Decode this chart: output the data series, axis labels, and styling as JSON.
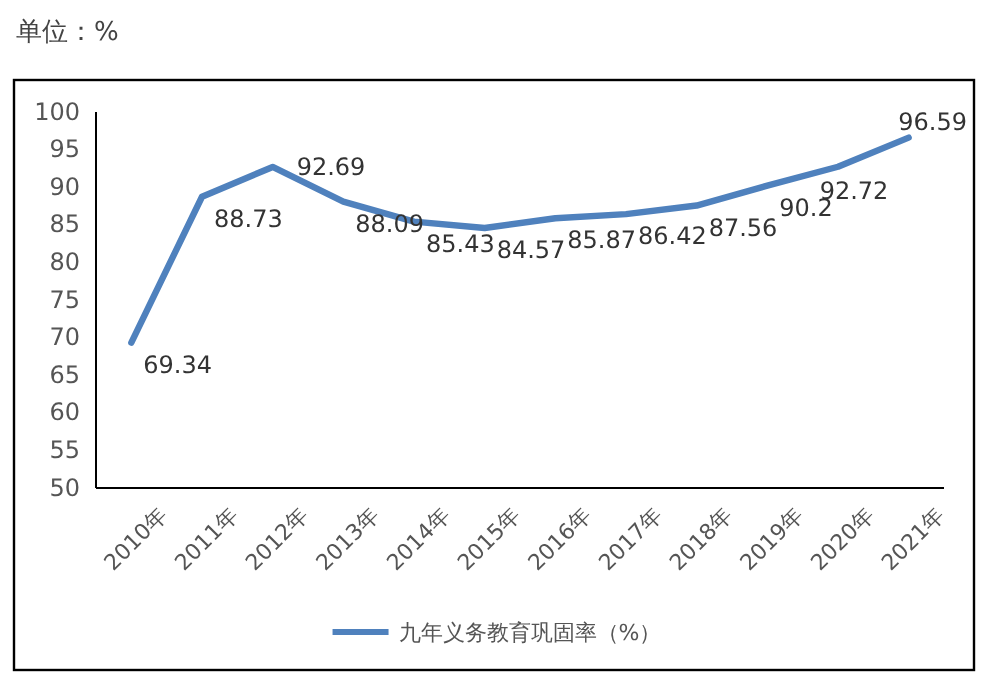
{
  "chart_data": {
    "type": "line",
    "title": "单位：%",
    "categories": [
      "2010年",
      "2011年",
      "2012年",
      "2013年",
      "2014年",
      "2015年",
      "2016年",
      "2017年",
      "2018年",
      "2019年",
      "2020年",
      "2021年"
    ],
    "series": [
      {
        "name": "九年义务教育巩固率（%）",
        "color": "#4f81bd",
        "values": [
          69.34,
          88.73,
          92.69,
          88.09,
          85.43,
          84.57,
          85.87,
          86.42,
          87.56,
          90.2,
          92.72,
          96.59
        ]
      }
    ],
    "ylim": [
      50,
      100
    ],
    "yticks": [
      50,
      55,
      60,
      65,
      70,
      75,
      80,
      85,
      90,
      95,
      100
    ],
    "data_labels": true,
    "grid": false,
    "legend": "bottom",
    "marker": "none",
    "line_style": "solid"
  }
}
